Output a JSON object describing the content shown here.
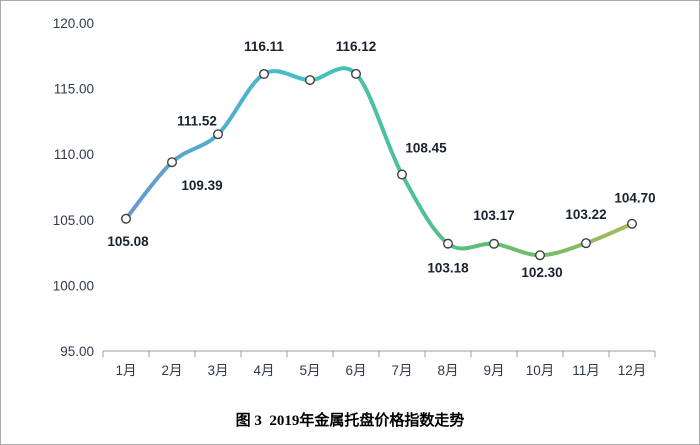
{
  "figure": {
    "caption": "图 3  2019年金属托盘价格指数走势"
  },
  "chart_data": {
    "type": "line",
    "title": "",
    "categories": [
      "1月",
      "2月",
      "3月",
      "4月",
      "5月",
      "6月",
      "7月",
      "8月",
      "9月",
      "10月",
      "11月",
      "12月"
    ],
    "series": [
      {
        "name": "金属托盘价格指数",
        "values": [
          105.08,
          109.39,
          111.52,
          116.11,
          115.65,
          116.12,
          108.45,
          103.18,
          103.17,
          102.3,
          103.22,
          104.7
        ]
      }
    ],
    "data_labels": [
      "105.08",
      "109.39",
      "111.52",
      "116.11",
      "",
      "116.12",
      "108.45",
      "103.18",
      "103.17",
      "102.30",
      "103.22",
      "104.70"
    ],
    "label_offsets": [
      [
        2,
        27
      ],
      [
        30,
        28
      ],
      [
        -21,
        -9
      ],
      [
        0,
        -23
      ],
      null,
      [
        0,
        -23
      ],
      [
        24,
        -22
      ],
      [
        0,
        29
      ],
      [
        0,
        -24
      ],
      [
        2,
        22
      ],
      [
        0,
        -24
      ],
      [
        3,
        -21
      ]
    ],
    "ylim": [
      95,
      120
    ],
    "y_ticks": [
      "120.00",
      "115.00",
      "110.00",
      "105.00",
      "100.00",
      "95.00"
    ],
    "grid": false,
    "legend": "none",
    "smooth": true,
    "line_gradient": [
      "#6b94d0",
      "#57a7d3",
      "#41bec9",
      "#4ac0a5",
      "#5bbd7c",
      "#7cbd64",
      "#b7b958"
    ],
    "line_width": 4,
    "marker": {
      "fill": "#ffffff",
      "stroke": "#3f3f3f"
    },
    "axis_color": "#9aa0a6",
    "axis_text_color": "#2f3b4c",
    "data_label_color": "#18222e"
  }
}
